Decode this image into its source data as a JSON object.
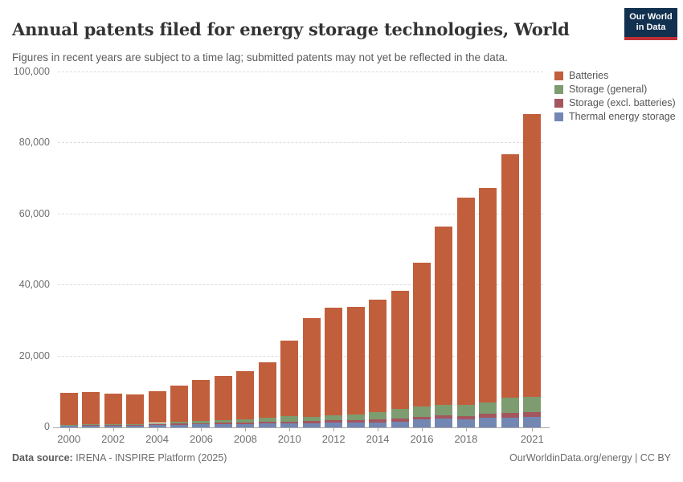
{
  "header": {
    "logo": {
      "line1": "Our World",
      "line2": "in Data"
    }
  },
  "chart_data": {
    "type": "bar",
    "stacked": true,
    "title": "Annual patents filed for energy storage technologies, World",
    "subtitle": "Figures in recent years are subject to a time lag; submitted patents may not yet be reflected in the data.",
    "x": [
      2000,
      2001,
      2002,
      2003,
      2004,
      2005,
      2006,
      2007,
      2008,
      2009,
      2010,
      2011,
      2012,
      2013,
      2014,
      2015,
      2016,
      2017,
      2018,
      2019,
      2020,
      2021
    ],
    "series": [
      {
        "name": "Thermal energy storage",
        "color": "#7387b3",
        "values": [
          450,
          450,
          500,
          500,
          650,
          750,
          830,
          830,
          900,
          1050,
          1150,
          1150,
          1300,
          1300,
          1430,
          1580,
          2200,
          2500,
          2350,
          2650,
          2800,
          2950
        ]
      },
      {
        "name": "Storage (excl. batteries)",
        "color": "#a4565e",
        "values": [
          150,
          150,
          200,
          200,
          300,
          380,
          380,
          450,
          460,
          450,
          550,
          600,
          780,
          830,
          900,
          900,
          750,
          900,
          900,
          1150,
          1200,
          1350
        ]
      },
      {
        "name": "Storage (general)",
        "color": "#7d9c70",
        "values": [
          150,
          200,
          200,
          250,
          300,
          450,
          600,
          680,
          900,
          1150,
          1400,
          1300,
          1350,
          1430,
          1960,
          2700,
          3000,
          3000,
          3000,
          3250,
          4350,
          4350
        ]
      },
      {
        "name": "Batteries",
        "color": "#c15f3c",
        "values": [
          9050,
          9100,
          8500,
          8250,
          8950,
          10220,
          11590,
          12440,
          13540,
          15650,
          21400,
          27650,
          30270,
          30440,
          31610,
          33320,
          40450,
          50100,
          58450,
          60450,
          68650,
          79550
        ]
      }
    ],
    "totals": [
      9800,
      9900,
      9400,
      9200,
      10200,
      11800,
      13400,
      14400,
      15800,
      18300,
      24500,
      30700,
      33700,
      34000,
      35900,
      38500,
      46400,
      56500,
      64700,
      67500,
      77000,
      88200
    ],
    "ylim": [
      0,
      100000
    ],
    "yticks": [
      {
        "v": 0,
        "label": "0"
      },
      {
        "v": 20000,
        "label": "20,000"
      },
      {
        "v": 40000,
        "label": "40,000"
      },
      {
        "v": 60000,
        "label": "60,000"
      },
      {
        "v": 80000,
        "label": "80,000"
      },
      {
        "v": 100000,
        "label": "100,000"
      }
    ],
    "xticks": [
      "2000",
      "2002",
      "2004",
      "2006",
      "2008",
      "2010",
      "2012",
      "2014",
      "2016",
      "2018",
      "2021"
    ],
    "legend_order": [
      "Batteries",
      "Storage (general)",
      "Storage (excl. batteries)",
      "Thermal energy storage"
    ],
    "grid": "dashed-horizontal",
    "legend_position": "right-top"
  },
  "footer": {
    "source_label": "Data source:",
    "source_text": " IRENA - INSPIRE Platform (2025)",
    "right_text": "OurWorldinData.org/energy | CC BY"
  }
}
